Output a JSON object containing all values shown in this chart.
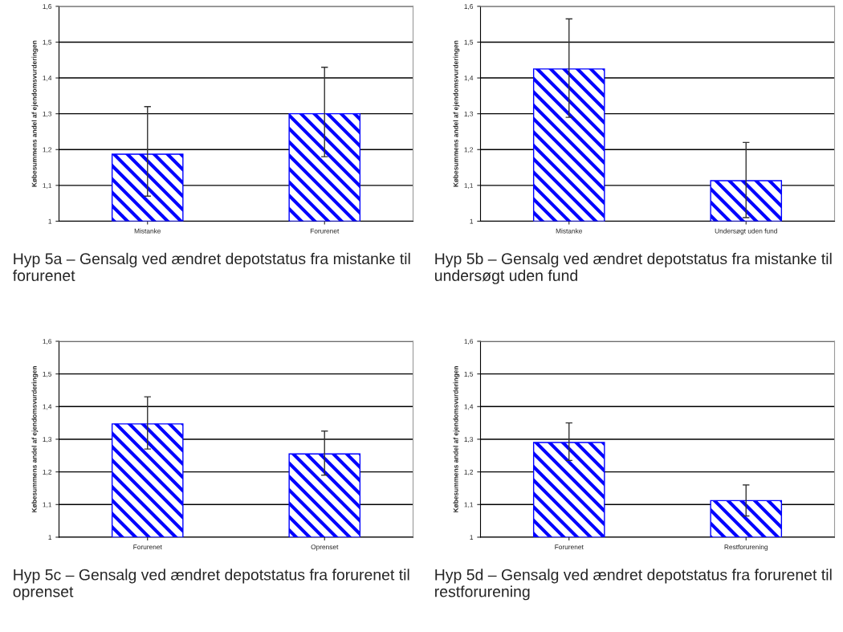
{
  "chart_data": [
    {
      "type": "bar",
      "categories": [
        "Mistanke",
        "Forurenet"
      ],
      "values": [
        1.187,
        1.3
      ],
      "errors": [
        [
          1.07,
          1.32
        ],
        [
          1.18,
          1.43
        ]
      ],
      "color": "#0000ff",
      "ylabel": "Købesummens andel af ejendomsvurderingen",
      "ylim": [
        1,
        1.6
      ],
      "yticks": [
        {
          "value": 1,
          "label": "1"
        },
        {
          "value": 1.1,
          "label": "1,1"
        },
        {
          "value": 1.2,
          "label": "1,2"
        },
        {
          "value": 1.3,
          "label": "1,3"
        },
        {
          "value": 1.4,
          "label": "1,4"
        },
        {
          "value": 1.5,
          "label": "1,5"
        },
        {
          "value": 1.6,
          "label": "1,6"
        }
      ],
      "grid": "y",
      "annotations": [
        "Hyp 5a – Gensalg ved ændret depotstatus fra mistanke til forurenet"
      ]
    },
    {
      "type": "bar",
      "categories": [
        "Mistanke",
        "Undersøgt uden fund"
      ],
      "values": [
        1.425,
        1.113
      ],
      "errors": [
        [
          1.29,
          1.565
        ],
        [
          1.01,
          1.22
        ]
      ],
      "color": "#0000ff",
      "ylabel": "Købesummens andel af ejendomsvurderingen",
      "ylim": [
        1,
        1.6
      ],
      "yticks": [
        {
          "value": 1,
          "label": "1"
        },
        {
          "value": 1.1,
          "label": "1,1"
        },
        {
          "value": 1.2,
          "label": "1,2"
        },
        {
          "value": 1.3,
          "label": "1,3"
        },
        {
          "value": 1.4,
          "label": "1,4"
        },
        {
          "value": 1.5,
          "label": "1,5"
        },
        {
          "value": 1.6,
          "label": "1,6"
        }
      ],
      "grid": "y",
      "annotations": [
        "Hyp 5b – Gensalg ved ændret depotstatus fra mistanke til undersøgt uden fund"
      ]
    },
    {
      "type": "bar",
      "categories": [
        "Forurenet",
        "Oprenset"
      ],
      "values": [
        1.347,
        1.255
      ],
      "errors": [
        [
          1.27,
          1.43
        ],
        [
          1.19,
          1.325
        ]
      ],
      "color": "#0000ff",
      "ylabel": "Købesummens andel af ejendomsvurderingen",
      "ylim": [
        1,
        1.6
      ],
      "yticks": [
        {
          "value": 1,
          "label": "1"
        },
        {
          "value": 1.1,
          "label": "1,1"
        },
        {
          "value": 1.2,
          "label": "1,2"
        },
        {
          "value": 1.3,
          "label": "1,3"
        },
        {
          "value": 1.4,
          "label": "1,4"
        },
        {
          "value": 1.5,
          "label": "1,5"
        },
        {
          "value": 1.6,
          "label": "1,6"
        }
      ],
      "grid": "y",
      "annotations": [
        "Hyp 5c – Gensalg ved ændret depotstatus fra forurenet til oprenset"
      ]
    },
    {
      "type": "bar",
      "categories": [
        "Forurenet",
        "Restforurening"
      ],
      "values": [
        1.29,
        1.112
      ],
      "errors": [
        [
          1.235,
          1.35
        ],
        [
          1.065,
          1.16
        ]
      ],
      "color": "#0000ff",
      "ylabel": "Købesummens andel af ejendomsvurderingen",
      "ylim": [
        1,
        1.6
      ],
      "yticks": [
        {
          "value": 1,
          "label": "1"
        },
        {
          "value": 1.1,
          "label": "1,1"
        },
        {
          "value": 1.2,
          "label": "1,2"
        },
        {
          "value": 1.3,
          "label": "1,3"
        },
        {
          "value": 1.4,
          "label": "1,4"
        },
        {
          "value": 1.5,
          "label": "1,5"
        },
        {
          "value": 1.6,
          "label": "1,6"
        }
      ],
      "grid": "y",
      "annotations": [
        "Hyp 5d – Gensalg ved ændret depotstatus fra forurenet til restforurening"
      ]
    }
  ]
}
